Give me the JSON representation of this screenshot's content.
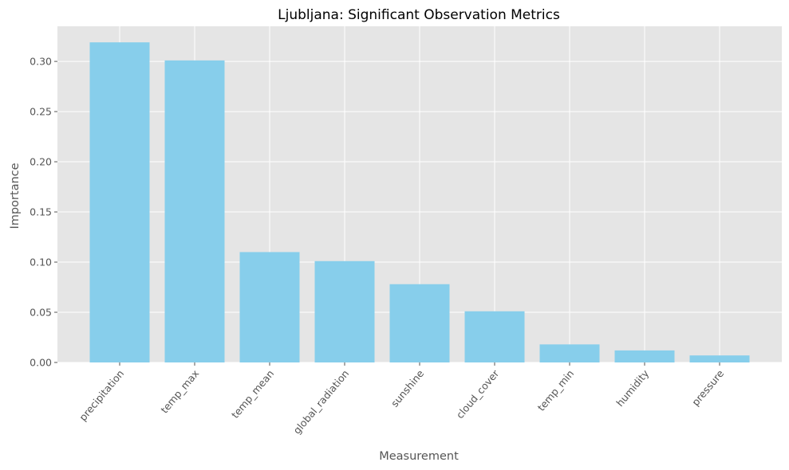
{
  "chart_data": {
    "type": "bar",
    "title": "Ljubljana: Significant Observation Metrics",
    "xlabel": "Measurement",
    "ylabel": "Importance",
    "categories": [
      "precipitation",
      "temp_max",
      "temp_mean",
      "global_radiation",
      "sunshine",
      "cloud_cover",
      "temp_min",
      "humidity",
      "pressure"
    ],
    "values": [
      0.319,
      0.301,
      0.11,
      0.101,
      0.078,
      0.051,
      0.018,
      0.012,
      0.007
    ],
    "ylim": [
      0,
      0.335
    ],
    "yticks": [
      0.0,
      0.05,
      0.1,
      0.15,
      0.2,
      0.25,
      0.3
    ],
    "ytick_labels": [
      "0.00",
      "0.05",
      "0.10",
      "0.15",
      "0.20",
      "0.25",
      "0.30"
    ],
    "grid": true,
    "bar_color": "#87ceeb",
    "background_color": "#e5e5e5",
    "grid_color": "#ffffff"
  }
}
